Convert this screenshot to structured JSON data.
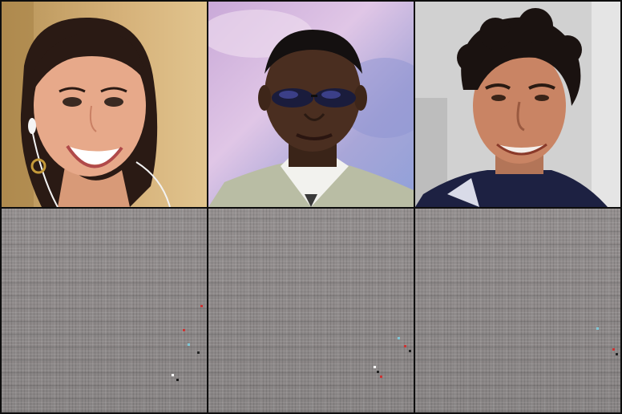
{
  "layout": {
    "rows": 2,
    "columns": 3
  },
  "images": [
    {
      "row": 1,
      "col": 1,
      "subject": "woman-smiling-earphones"
    },
    {
      "row": 1,
      "col": 2,
      "subject": "man-sunglasses-suit"
    },
    {
      "row": 1,
      "col": 3,
      "subject": "man-curly-hair-smiling"
    },
    {
      "row": 2,
      "col": 1,
      "subject": "noise-pattern"
    },
    {
      "row": 2,
      "col": 2,
      "subject": "noise-pattern"
    },
    {
      "row": 2,
      "col": 3,
      "subject": "noise-pattern"
    }
  ],
  "colors": {
    "background": "#0e0e0e",
    "noise_base": "#8c8888",
    "tile1_bg": "#c9a56c",
    "tile2_bg": "#b9a6d6",
    "tile3_bg": "#d7d7d7"
  }
}
